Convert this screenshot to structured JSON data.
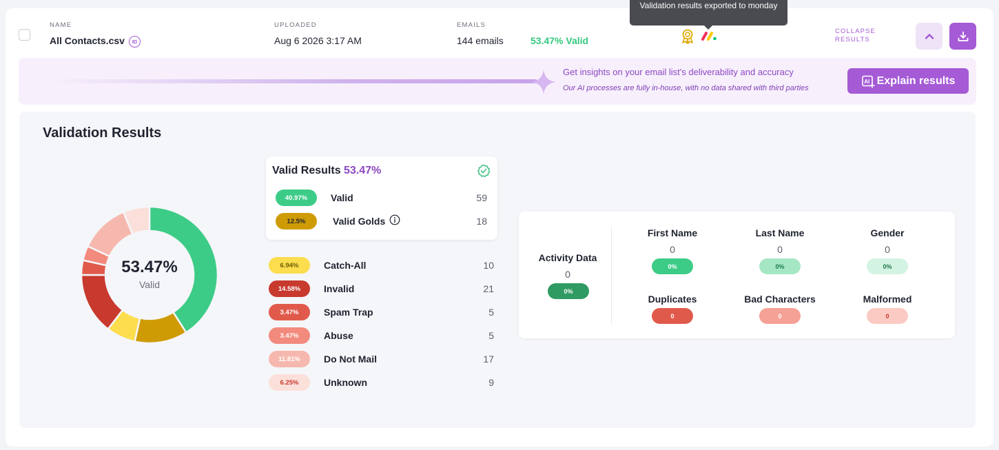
{
  "file": {
    "name_label": "NAME",
    "name": "All Contacts.csv",
    "id_badge": "ID",
    "uploaded_label": "UPLOADED",
    "uploaded": "Aug 6 2026 3:17 AM",
    "emails_label": "EMAILS",
    "emails": "144 emails",
    "valid_pct": "53.47% Valid"
  },
  "tooltip": {
    "text": "Validation results exported to monday"
  },
  "icons": {
    "award": "award-icon",
    "integration": "monday-icon",
    "collapse": "chevron-up-icon",
    "download": "download-icon",
    "sparkle": "sparkle-icon",
    "ai": "ai-icon",
    "check": "check-circle-icon",
    "info": "info-icon"
  },
  "actions": {
    "collapse_label": "COLLAPSE RESULTS"
  },
  "banner": {
    "title": "Get insights on your email list's deliverability and accuracy",
    "subtitle": "Our AI processes are fully in-house, with no data shared with third parties",
    "button_label": "Explain results"
  },
  "results": {
    "title": "Validation Results",
    "donut_value": "53.47%",
    "donut_label": "Valid",
    "valid_card": {
      "title": "Valid Results",
      "pct": "53.47%"
    },
    "valid_rows": [
      {
        "label": "Valid",
        "pct": "40.97%",
        "count": "59",
        "color": "#3dcc87"
      },
      {
        "label": "Valid Golds",
        "pct": "12.5%",
        "count": "18",
        "color": "#cf9b05"
      }
    ],
    "other_rows": [
      {
        "label": "Catch-All",
        "pct": "6.94%",
        "count": "10",
        "color": "#fbdd4e"
      },
      {
        "label": "Invalid",
        "pct": "14.58%",
        "count": "21",
        "color": "#c8392e"
      },
      {
        "label": "Spam Trap",
        "pct": "3.47%",
        "count": "5",
        "color": "#e05a4b"
      },
      {
        "label": "Abuse",
        "pct": "3.47%",
        "count": "5",
        "color": "#f28b7d"
      },
      {
        "label": "Do Not Mail",
        "pct": "11.81%",
        "count": "17",
        "color": "#f6b8ae"
      },
      {
        "label": "Unknown",
        "pct": "6.25%",
        "count": "9",
        "color": "#fbe0da"
      }
    ]
  },
  "enrichment": {
    "activity": {
      "label": "Activity Data",
      "value": "0",
      "pct": "0%"
    },
    "items": [
      {
        "label": "First Name",
        "value": "0",
        "pct": "0%"
      },
      {
        "label": "Last Name",
        "value": "0",
        "pct": "0%"
      },
      {
        "label": "Gender",
        "value": "0",
        "pct": "0%"
      }
    ],
    "issues": [
      {
        "label": "Duplicates",
        "value": "0"
      },
      {
        "label": "Bad Characters",
        "value": "0"
      },
      {
        "label": "Malformed",
        "value": "0"
      }
    ]
  }
}
